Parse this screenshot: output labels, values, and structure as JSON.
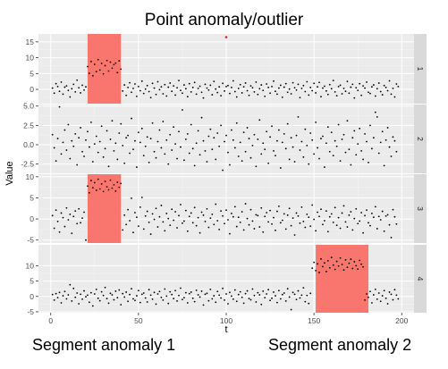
{
  "figure": {
    "title": "Point anomaly/outlier",
    "caption_left": "Segment anomaly 1",
    "caption_right": "Segment anomaly 2"
  },
  "chart_data": {
    "type": "scatter",
    "facet": "vertical",
    "xlabel": "t",
    "ylabel": "Value",
    "xlim": [
      -7,
      207
    ],
    "x_ticks": [
      0,
      50,
      100,
      150,
      200
    ],
    "grid": true,
    "colors": {
      "panel_bg": "#EBEBEB",
      "grid_major": "#FFFFFF",
      "strip_bg": "#D9D9D9",
      "point": "#000000",
      "anomaly_point": "#E41A1C",
      "anomaly_rect": "#F8766D"
    },
    "panels": [
      {
        "strip": "1",
        "ylim": [
          -4.5,
          17.5
        ],
        "y_ticks": [
          -5,
          0,
          5,
          10,
          15
        ],
        "y_tick_labels": [
          "-5",
          "0",
          "5",
          "10",
          "15"
        ],
        "highlight": [
          {
            "x0": 21,
            "x1": 40
          }
        ],
        "points_x_start": 1,
        "points": [
          0.4,
          -1.2,
          1.8,
          0.9,
          -0.6,
          2.3,
          -1.5,
          0.7,
          1.1,
          -0.3,
          -2.4,
          0.2,
          1.6,
          -0.8,
          2.9,
          0.5,
          -1.1,
          1.3,
          -0.2,
          0.8,
          7.2,
          5.1,
          8.8,
          4.3,
          7.9,
          5.6,
          9.4,
          6.1,
          8.2,
          4.9,
          7.5,
          9.1,
          5.8,
          8.6,
          6.7,
          7.8,
          8.3,
          5.3,
          9,
          6.4,
          -0.5,
          1.4,
          -1.9,
          0.6,
          2.1,
          -0.9,
          0.3,
          1.7,
          -2.2,
          0.9,
          -0.4,
          2.6,
          -1.3,
          0.1,
          1.2,
          -0.7,
          -2.6,
          1.9,
          0.4,
          -1.6,
          2.4,
          -0.1,
          0.8,
          -1.4,
          1.5,
          -2.1,
          0.7,
          2,
          -0.6,
          1.1,
          -1.8,
          0.5,
          2.8,
          -0.3,
          -1.2,
          1.4,
          0.2,
          -2.3,
          1.8,
          -0.8,
          0.6,
          2.2,
          -1.5,
          0.3,
          1,
          -0.9,
          -2.7,
          1.6,
          0.4,
          -0.2,
          1.3,
          -1.7,
          2.5,
          0.1,
          -1,
          0.8,
          -2,
          1.9,
          -0.5,
          0.9,
          1.2,
          -1.3,
          0.6,
          2.7,
          -0.7,
          -2.4,
          0.3,
          1.5,
          -1.1,
          0.8,
          2,
          -0.4,
          -1.9,
          1.1,
          0.5,
          -0.8,
          2.3,
          -1.6,
          0.2,
          1.4,
          -0.3,
          -2.2,
          1.7,
          0.6,
          -1.2,
          0.9,
          2.6,
          -0.6,
          -1.5,
          0.4,
          1.3,
          -2.5,
          0.7,
          1.8,
          -0.9,
          0.1,
          -1.4,
          2.1,
          0.5,
          -0.2,
          1.6,
          -2.6,
          0.3,
          1.2,
          -0.7,
          2.4,
          -1.8,
          0.6,
          -0.4,
          1.9,
          -1.1,
          0.8,
          2.2,
          -2.3,
          0.4,
          1,
          -0.5,
          -1.6,
          1.5,
          0.2,
          2.8,
          -0.8,
          -2,
          0.9,
          1.3,
          -1.4,
          0.3,
          -0.6,
          2.5,
          -1.2,
          0.7,
          1.6,
          -2.7,
          0.5,
          -0.3,
          1.8,
          -1.9,
          1.1,
          0.4,
          2.3,
          -0.9,
          -1.3,
          0.8,
          1.4,
          -2.1,
          0.2,
          2,
          -0.7,
          -1.7,
          1.2,
          0.6,
          -0.4,
          2.7,
          -1.5,
          0.3,
          -2.4,
          1.7,
          0.9
        ],
        "anomaly_points": [
          {
            "x": 100,
            "y": 16.5
          }
        ]
      },
      {
        "strip": "2",
        "ylim": [
          -3.7,
          5.2
        ],
        "y_ticks": [
          -2.5,
          0,
          2.5,
          5
        ],
        "y_tick_labels": [
          "-2.5",
          "0.0",
          "2.5",
          "5.0"
        ],
        "highlight": [],
        "points_x_start": 1,
        "points": [
          1.3,
          -0.4,
          -2.1,
          0.8,
          4.9,
          -1.2,
          0.3,
          1.9,
          -0.7,
          2.6,
          -1.8,
          0.5,
          -0.2,
          1.4,
          -2.6,
          0.9,
          2.2,
          -0.9,
          -1.5,
          0.6,
          1.7,
          -0.3,
          2.9,
          -2.2,
          0.1,
          1.1,
          -1,
          0.4,
          2.4,
          -1.6,
          -0.5,
          1.8,
          -2.8,
          0.7,
          3.1,
          -0.8,
          0.2,
          -1.9,
          1.5,
          2.7,
          -0.1,
          -2.4,
          0.9,
          1.2,
          -1.1,
          3.4,
          -0.6,
          0.5,
          -2.9,
          1.6,
          0.3,
          2.1,
          -1.4,
          -0.2,
          1,
          -2.3,
          0.8,
          2.8,
          -0.9,
          -1.7,
          0.4,
          1.9,
          -0.4,
          3,
          -1.2,
          0.6,
          -2.5,
          1.3,
          -0.7,
          2.3,
          0.1,
          -1.8,
          1.7,
          -0.3,
          4.5,
          -2,
          0.7,
          1.4,
          -1.1,
          2.6,
          -0.5,
          -2.7,
          0.2,
          1.8,
          -1.3,
          3.5,
          0.5,
          -0.8,
          -2.2,
          1.1,
          2,
          -0.6,
          0.9,
          -1.9,
          1.5,
          -0.2,
          2.5,
          -3.3,
          0.4,
          1.2,
          -1,
          -2.6,
          1.9,
          0.6,
          -0.4,
          2.8,
          -1.5,
          0.3,
          -2.1,
          1.6,
          -0.9,
          2.2,
          0.8,
          -1.7,
          -0.1,
          1.3,
          -2.8,
          0.7,
          3.2,
          -1.2,
          0.2,
          -0.6,
          1.7,
          -2.4,
          1,
          2.4,
          -0.8,
          -1.4,
          0.5,
          1.9,
          -3,
          0.3,
          1.4,
          -0.5,
          2.7,
          -1.9,
          0.9,
          -0.3,
          -2.2,
          1.2,
          3.6,
          -0.7,
          0.4,
          -1.6,
          2,
          -0.1,
          -2.5,
          1.5,
          0.6,
          -1.2,
          2.9,
          -0.4,
          -1.8,
          0.8,
          1.1,
          -2.9,
          0.2,
          2.3,
          -0.9,
          1.6,
          -1.4,
          0.5,
          -0.2,
          2.6,
          -2.1,
          0.7,
          1.3,
          -1,
          3.1,
          -0.6,
          -2.6,
          0.9,
          1.8,
          -1.3,
          0.1,
          2.1,
          -0.8,
          -1.9,
          1.4,
          0.4,
          -2.3,
          2.5,
          -0.5,
          0.9,
          4.2,
          3.6,
          -1.1,
          0.3,
          1.7,
          -2.7,
          0.6,
          2.2,
          -0.3,
          -1.5,
          1,
          0.5,
          -0.9
        ],
        "anomaly_points": []
      },
      {
        "strip": "3",
        "ylim": [
          -5.7,
          10.6
        ],
        "y_ticks": [
          -5,
          0,
          5,
          10
        ],
        "y_tick_labels": [
          "-5",
          "0",
          "5",
          "10"
        ],
        "highlight": [
          {
            "x0": 21,
            "x1": 40
          }
        ],
        "points_x_start": 1,
        "points": [
          0.8,
          -2.2,
          2.1,
          -0.6,
          -3.1,
          1.4,
          0.3,
          -1.8,
          2.6,
          -0.2,
          1.1,
          -3.4,
          0.6,
          1.9,
          -1.1,
          2.4,
          -0.9,
          0.2,
          1.6,
          -5,
          7.8,
          6.2,
          9.1,
          7.4,
          8.6,
          6.8,
          9.4,
          7.1,
          8.3,
          6.5,
          8.9,
          7.6,
          6.9,
          9.2,
          7.3,
          8.1,
          6.6,
          8.7,
          7.5,
          8.4,
          -2.6,
          0.9,
          -1.3,
          2.2,
          -0.4,
          4.9,
          -3.2,
          1.5,
          0.4,
          -1.7,
          2.8,
          5.1,
          -2.4,
          0.7,
          1.8,
          -0.8,
          -3.6,
          1.2,
          -0.1,
          2.5,
          -1.9,
          0.5,
          3.2,
          -0.7,
          -2.8,
          1.3,
          0.1,
          -1.5,
          2.3,
          -0.3,
          1.7,
          -2.1,
          0.8,
          3.4,
          -1,
          -0.5,
          2,
          -2.9,
          0.6,
          1.4,
          -0.9,
          2.7,
          -1.6,
          0.3,
          -3.3,
          1.6,
          0.9,
          -0.6,
          2.4,
          -2,
          0.2,
          1.1,
          -1.3,
          3.5,
          -0.4,
          -2.5,
          1.9,
          0.7,
          -1.1,
          2.1,
          -0.2,
          -3.5,
          1.3,
          0.5,
          2.9,
          -1.8,
          0.4,
          -0.8,
          1.7,
          -2.6,
          3.6,
          0.1,
          -1.4,
          2.2,
          -0.5,
          -2.3,
          1,
          0.8,
          -1.9,
          2.6,
          -3.1,
          0.6,
          1.5,
          -0.7,
          2,
          -1.2,
          0.3,
          -2.7,
          1.8,
          3,
          -0.9,
          -0.3,
          1.2,
          -2.4,
          0.9,
          2.5,
          -1.6,
          0.2,
          -3.8,
          1.4,
          0.7,
          -1,
          2.8,
          -0.6,
          -2,
          1.1,
          0.4,
          -1.7,
          3.3,
          -0.1,
          -2.8,
          1.6,
          0.6,
          2.3,
          -1.3,
          -0.4,
          1.9,
          -3,
          0.5,
          1.2,
          -0.8,
          2.7,
          -1.5,
          0.3,
          -2.2,
          1.4,
          3.1,
          -0.7,
          -1.9,
          0.9,
          1.7,
          -2.6,
          0.1,
          2.4,
          -1.1,
          -0.5,
          1.5,
          -3.3,
          0.8,
          2.1,
          -0.9,
          -1.6,
          1.3,
          0.4,
          2.9,
          -2.3,
          0.6,
          -0.2,
          1.8,
          -2.9,
          0.7,
          1,
          -1.4,
          -4.4,
          2.2,
          0.5,
          -1.2
        ],
        "anomaly_points": []
      },
      {
        "strip": "4",
        "ylim": [
          -5.3,
          16.8
        ],
        "y_ticks": [
          -5,
          0,
          5,
          10
        ],
        "y_tick_labels": [
          "-5",
          "0",
          "5",
          "10"
        ],
        "highlight": [
          {
            "x0": 151,
            "x1": 181
          }
        ],
        "points_x_start": 1,
        "points": [
          0.6,
          -1.2,
          0.9,
          -0.4,
          1.3,
          -2.1,
          0.2,
          1.6,
          -0.8,
          0.5,
          3.8,
          -1.5,
          2.6,
          -0.3,
          1.1,
          -2.4,
          0.7,
          -0.9,
          1.8,
          -0.1,
          0.4,
          -1.9,
          1.2,
          -3.1,
          0.8,
          2.3,
          -0.6,
          -1.4,
          1.5,
          0.3,
          2.9,
          -0.7,
          -2.2,
          1,
          0.5,
          -1.1,
          1.7,
          -0.4,
          2.1,
          -2.7,
          0.9,
          -0.2,
          1.4,
          -1.6,
          0.6,
          2.5,
          -0.8,
          -1.3,
          0.2,
          1.9,
          -2,
          0.7,
          1.1,
          -0.5,
          -1.8,
          2.2,
          0.4,
          -0.9,
          1.3,
          -2.5,
          0.8,
          1.6,
          -0.3,
          -1.2,
          2.4,
          0.1,
          -2.3,
          1.5,
          0.6,
          -0.7,
          1.9,
          -1.5,
          0.3,
          2.7,
          -1,
          -0.4,
          1.2,
          -2.1,
          0.9,
          1.4,
          -0.6,
          -1.7,
          2,
          0.5,
          -0.2,
          1.7,
          -2.8,
          0.7,
          1,
          -1.4,
          2.3,
          -0.8,
          0.2,
          -1.9,
          1.6,
          0.4,
          -0.5,
          2.6,
          -1.2,
          0.8,
          -2.4,
          1.3,
          0.1,
          -0.9,
          2.1,
          -1.6,
          0.6,
          1.5,
          -0.3,
          -2.2,
          0.9,
          1.8,
          -0.7,
          -1.1,
          2.4,
          0.3,
          -1.8,
          1.2,
          0.5,
          -2.6,
          1.7,
          -0.4,
          0.8,
          2.2,
          -1.3,
          -0.6,
          1.4,
          0.2,
          -2,
          1.9,
          -0.8,
          0.6,
          1.1,
          -1.5,
          2.5,
          -0.2,
          -4.3,
          1.3,
          0.7,
          -1,
          1.8,
          -0.5,
          0.4,
          2.8,
          -1.7,
          0.3,
          -2.3,
          1,
          9.2,
          11.1,
          8.4,
          10.6,
          7.8,
          12.2,
          9.7,
          10.9,
          8.1,
          11.6,
          9.3,
          12.7,
          10.2,
          8.8,
          11.4,
          9.9,
          12.5,
          10.4,
          8.6,
          11.9,
          9.5,
          10.8,
          12.1,
          9.1,
          11.3,
          10,
          8.9,
          11.7,
          10.5,
          9.6,
          -1.2,
          0.8,
          -0.3,
          1.6,
          -2.1,
          0.5,
          2.3,
          -0.9,
          1.1,
          -1.6,
          0.2,
          1.9,
          -0.6,
          -2.4,
          1.4,
          0.7,
          -1.1,
          2.2,
          0.4,
          -0.8
        ],
        "anomaly_points": []
      }
    ]
  }
}
